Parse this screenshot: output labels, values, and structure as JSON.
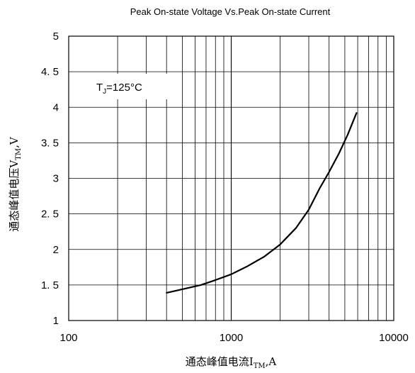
{
  "chart_data": {
    "type": "line",
    "title": "Peak On-state Voltage Vs.Peak On-state Current",
    "annotation": {
      "main": "T",
      "sub": "J",
      "rest": "=125°C"
    },
    "xlabel": {
      "main": "通态峰值电流I",
      "sub": "TM",
      "rest": ",A"
    },
    "ylabel": {
      "main": "通态峰值电压V",
      "sub": "TM",
      "rest": ",V"
    },
    "xscale": "log",
    "xlim": [
      100,
      10000
    ],
    "ylim": [
      1,
      5
    ],
    "xticks": [
      100,
      1000,
      10000
    ],
    "xtick_labels": [
      "100",
      "1000",
      "10000"
    ],
    "yticks": [
      1,
      1.5,
      2,
      2.5,
      3,
      3.5,
      4,
      4.5,
      5
    ],
    "ytick_labels": [
      "1",
      "1. 5",
      "2",
      "2. 5",
      "3",
      "3. 5",
      "4",
      "4. 5",
      "5"
    ],
    "grid": true,
    "series": [
      {
        "x": [
          400,
          500,
          650,
          800,
          1000,
          1250,
          1600,
          2000,
          2500,
          3000,
          3500,
          4000,
          4600,
          5200,
          5900
        ],
        "y": [
          1.39,
          1.44,
          1.5,
          1.57,
          1.65,
          1.76,
          1.9,
          2.07,
          2.3,
          2.56,
          2.86,
          3.09,
          3.35,
          3.61,
          3.92
        ]
      }
    ],
    "colors": {
      "line": "#000000",
      "grid": "#000000",
      "background": "#ffffff"
    }
  }
}
